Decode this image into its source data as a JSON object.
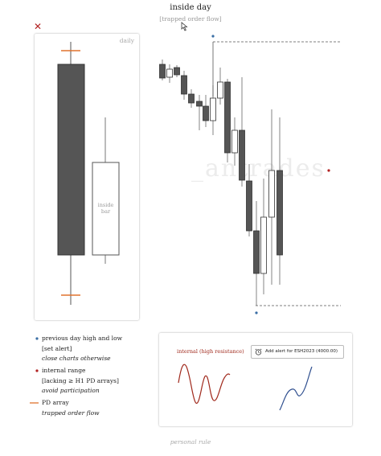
{
  "header": {
    "title": "inside day",
    "subtitle": "[trapped order flow]"
  },
  "daily_panel": {
    "label": "daily",
    "inside_bar_label_1": "inside",
    "inside_bar_label_2": "bar"
  },
  "watermark": "_antrades",
  "legend": {
    "items": [
      {
        "marker": "blue-dot",
        "line1": "previous day high and low",
        "line2": "[set alert]",
        "line3": "close charts otherwise"
      },
      {
        "marker": "red-dot",
        "line1": "internal range",
        "line2": "[lacking ≥ H1 PD arrays]",
        "line3": "avoid participation"
      },
      {
        "marker": "orange-line",
        "line1": "PD array",
        "line2": "trapped order flow"
      }
    ]
  },
  "alert_panel": {
    "internal_label": "internal (high resistance)",
    "alert_text": "Add alert for ESH2023 (4000.00)"
  },
  "footer": "personal rule",
  "colors": {
    "bearish": "#555555",
    "bullish": "#ffffff",
    "pd_array": "#e0732e",
    "dot_blue": "#3a6ea5",
    "dot_red": "#b22222",
    "curve_red": "#a0291c",
    "curve_blue": "#2f4f8f"
  }
}
